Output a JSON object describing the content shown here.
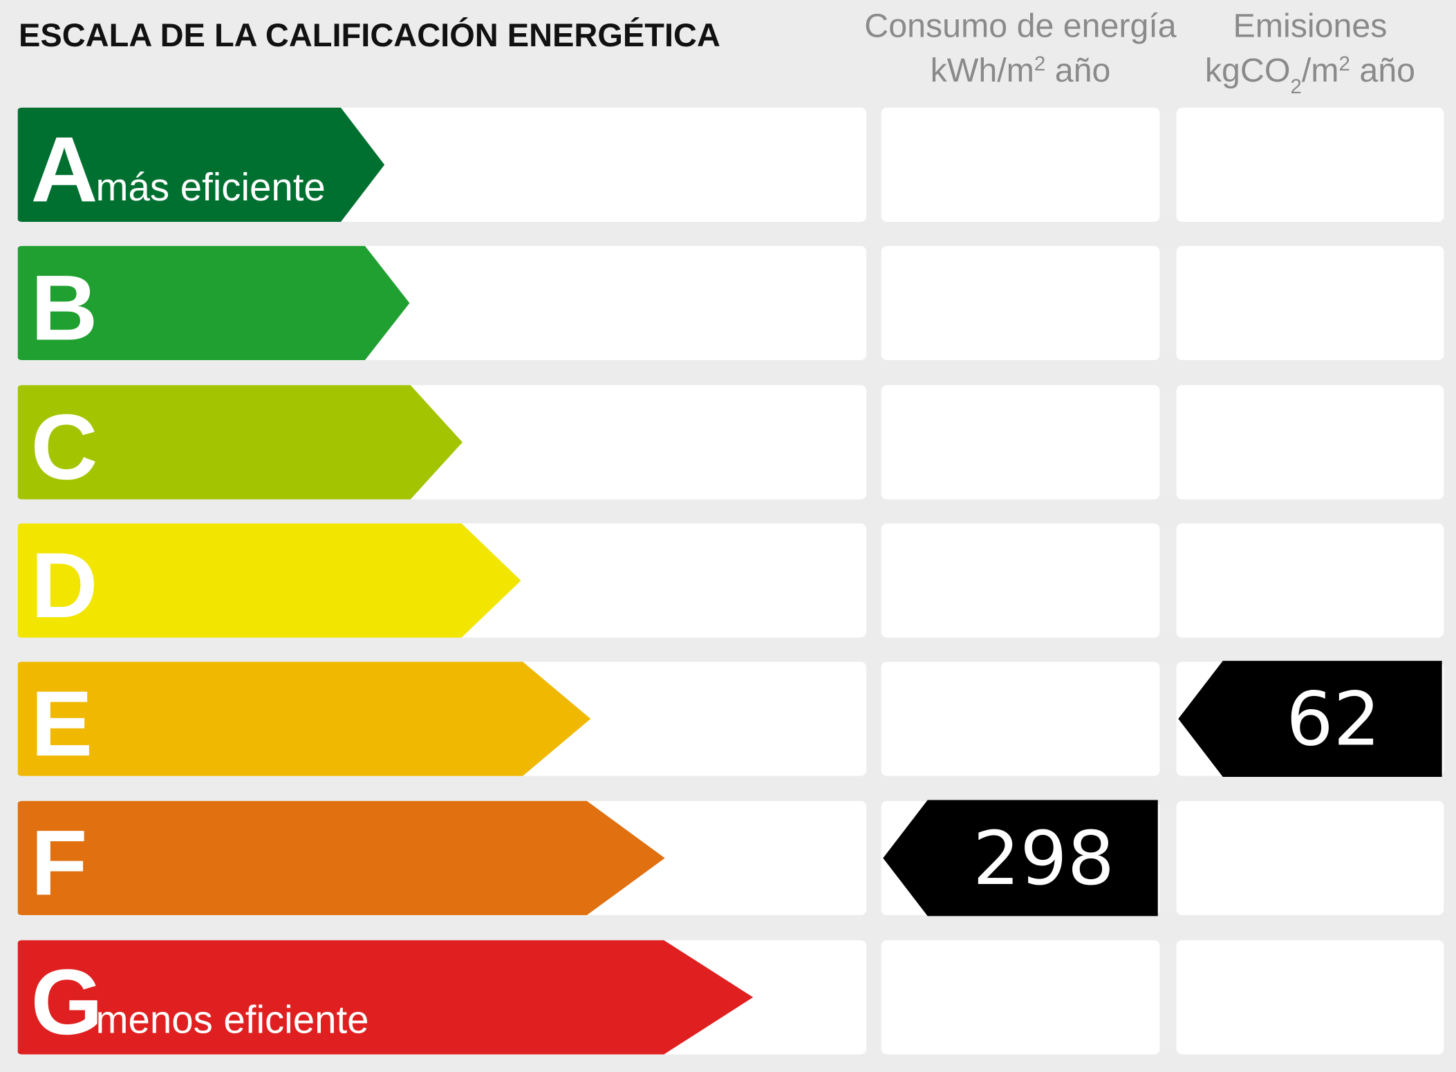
{
  "title": "ESCALA DE LA CALIFICACIÓN ENERGÉTICA",
  "columns": [
    {
      "line1": "Consumo de energía",
      "line2": [
        "kWh/m",
        "2",
        " año"
      ]
    },
    {
      "line1": "Emisiones",
      "line2": [
        "kgCO",
        "2",
        "/m",
        "2",
        " año"
      ]
    }
  ],
  "rows": [
    {
      "letter": "A",
      "note": "más eficiente",
      "color": "#007030"
    },
    {
      "letter": "B",
      "color": "#20a030"
    },
    {
      "letter": "C",
      "color": "#a3c400"
    },
    {
      "letter": "D",
      "color": "#f2e500"
    },
    {
      "letter": "E",
      "color": "#f0b800"
    },
    {
      "letter": "F",
      "color": "#e07010"
    },
    {
      "letter": "G",
      "note": "menos eficiente",
      "color": "#e02020"
    }
  ],
  "ratings": [
    {
      "letter": "F",
      "value": 298
    },
    {
      "letter": "E",
      "value": 62
    }
  ]
}
